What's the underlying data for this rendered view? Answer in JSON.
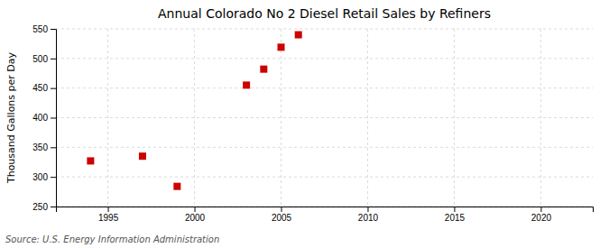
{
  "chart_data": {
    "type": "scatter",
    "title": "Annual Colorado No 2 Diesel Retail Sales by Refiners",
    "ylabel": "Thousand Gallons per Day",
    "source": "Source: U.S. Energy Information Administration",
    "x": [
      1994,
      1997,
      1999,
      2003,
      2004,
      2005,
      2006
    ],
    "values": [
      327,
      335,
      284,
      455,
      482,
      519,
      540
    ],
    "color": "#cc0000",
    "marker": "square",
    "xlim": [
      1992,
      2023
    ],
    "ylim": [
      250,
      550
    ],
    "xticks": [
      1995,
      2000,
      2005,
      2010,
      2015,
      2020
    ],
    "yticks": [
      250,
      300,
      350,
      400,
      450,
      500,
      550
    ],
    "grid": true
  }
}
